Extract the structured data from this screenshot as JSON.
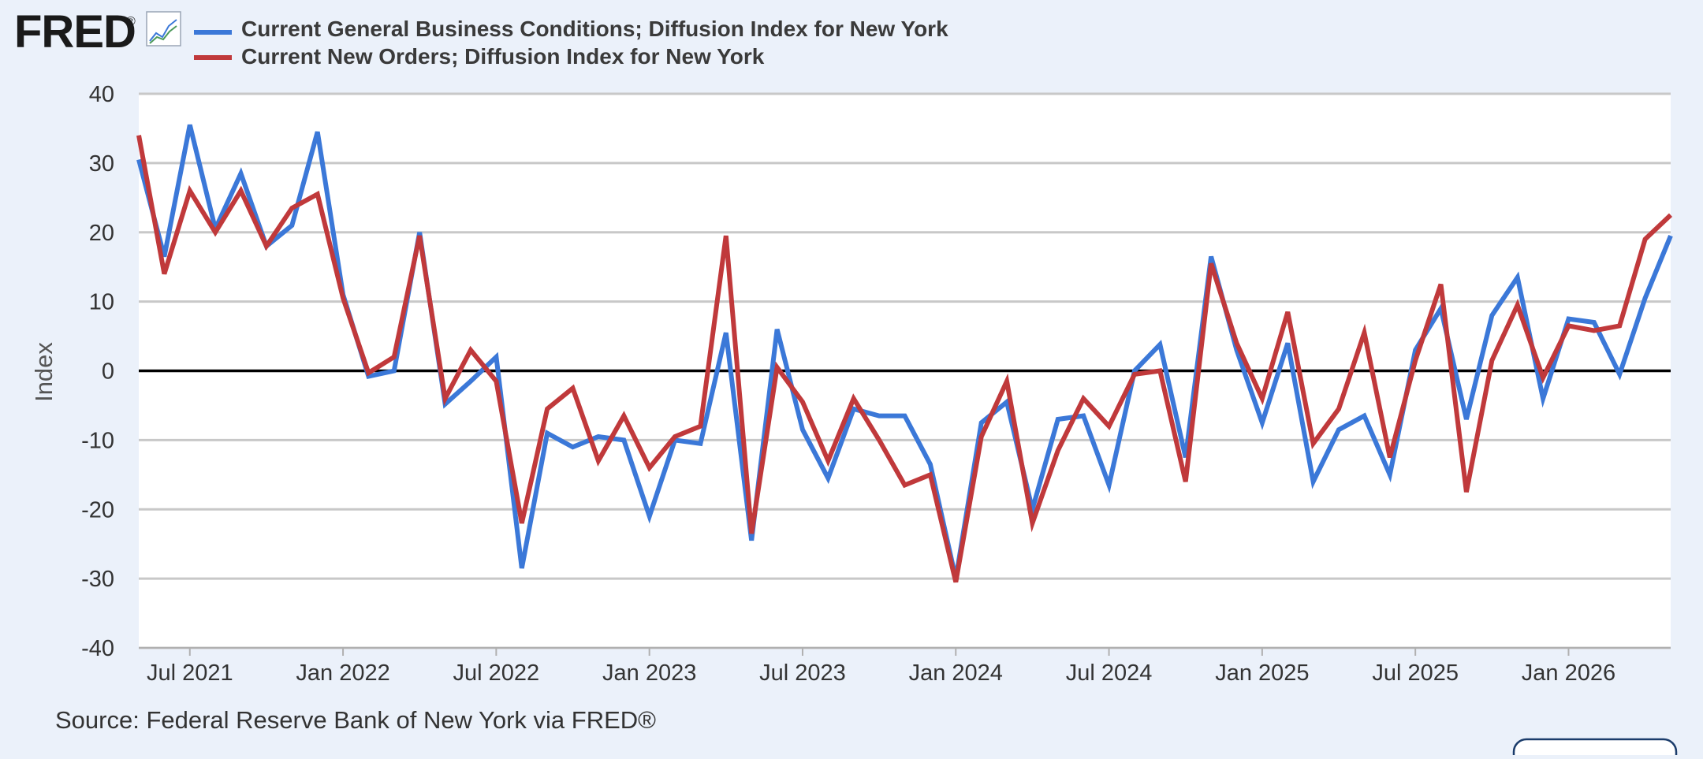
{
  "brand": {
    "logo_text": "FRED",
    "registered_mark": "®",
    "icon": "line-chart-icon"
  },
  "colors": {
    "background": "#ebf1fa",
    "plot_background": "#ffffff",
    "grid": "#c8c8c8",
    "zero_line": "#000000"
  },
  "source": "Source: Federal Reserve Bank of New York via FRED®",
  "chart_data": {
    "type": "line",
    "ylabel": "Index",
    "ylim": [
      -40,
      40
    ],
    "yticks": [
      "40",
      "30",
      "20",
      "10",
      "0",
      "-10",
      "-20",
      "-30",
      "-40"
    ],
    "grid": true,
    "legend_position": "top-left",
    "x": [
      "2021-05",
      "2021-06",
      "2021-07",
      "2021-08",
      "2021-09",
      "2021-10",
      "2021-11",
      "2021-12",
      "2022-01",
      "2022-02",
      "2022-03",
      "2022-04",
      "2022-05",
      "2022-06",
      "2022-07",
      "2022-08",
      "2022-09",
      "2022-10",
      "2022-11",
      "2022-12",
      "2023-01",
      "2023-02",
      "2023-03",
      "2023-04",
      "2023-05",
      "2023-06",
      "2023-07",
      "2023-08",
      "2023-09",
      "2023-10",
      "2023-11",
      "2023-12",
      "2024-01",
      "2024-02",
      "2024-03",
      "2024-04",
      "2024-05",
      "2024-06",
      "2024-07",
      "2024-08",
      "2024-09",
      "2024-10",
      "2024-11",
      "2024-12",
      "2025-01",
      "2025-02",
      "2025-03",
      "2025-04",
      "2025-05",
      "2025-06",
      "2025-07",
      "2025-08",
      "2025-09",
      "2025-10",
      "2025-11",
      "2025-12",
      "2026-01",
      "2026-02",
      "2026-03",
      "2026-04",
      "2026-05"
    ],
    "x_range": [
      "2021-05",
      "2026-05"
    ],
    "xticks": [
      {
        "label": "Jul 2021",
        "date": "2021-07"
      },
      {
        "label": "Jan 2022",
        "date": "2022-01"
      },
      {
        "label": "Jul 2022",
        "date": "2022-07"
      },
      {
        "label": "Jan 2023",
        "date": "2023-01"
      },
      {
        "label": "Jul 2023",
        "date": "2023-07"
      },
      {
        "label": "Jan 2024",
        "date": "2024-01"
      },
      {
        "label": "Jul 2024",
        "date": "2024-07"
      },
      {
        "label": "Jan 2025",
        "date": "2025-01"
      },
      {
        "label": "Jul 2025",
        "date": "2025-07"
      },
      {
        "label": "Jan 2026",
        "date": "2026-01"
      }
    ],
    "series": [
      {
        "name": "Current General Business Conditions; Diffusion Index for New York",
        "color": "#3b78d8",
        "values": [
          30.5,
          16.5,
          35.5,
          20.5,
          28.5,
          18.0,
          21.0,
          34.5,
          11.0,
          -0.8,
          0.0,
          20.0,
          -4.8,
          -1.5,
          2.0,
          -28.5,
          -9.0,
          -11.0,
          -9.5,
          -10.0,
          -21.0,
          -10.0,
          -10.5,
          5.5,
          -24.5,
          6.0,
          -8.5,
          -15.5,
          -5.5,
          -6.5,
          -6.5,
          -13.5,
          -30.0,
          -7.5,
          -4.5,
          -20.0,
          -7.0,
          -6.5,
          -16.5,
          0.0,
          3.8,
          -12.5,
          16.5,
          3.0,
          -7.5,
          4.0,
          -16.0,
          -8.5,
          -6.5,
          -15.0,
          3.0,
          9.0,
          -7.0,
          8.0,
          13.5,
          -4.0,
          7.5,
          7.0,
          -0.5,
          10.5,
          19.5
        ]
      },
      {
        "name": "Current New Orders; Diffusion Index for New York",
        "color": "#c0393b",
        "values": [
          34.0,
          14.0,
          26.0,
          20.0,
          26.0,
          18.0,
          23.5,
          25.5,
          10.5,
          -0.3,
          2.0,
          19.5,
          -4.0,
          3.0,
          -1.5,
          -22.0,
          -5.5,
          -2.5,
          -13.0,
          -6.5,
          -14.0,
          -9.5,
          -8.0,
          19.5,
          -23.5,
          0.5,
          -4.5,
          -13.0,
          -4.0,
          -10.0,
          -16.5,
          -15.0,
          -30.5,
          -9.5,
          -1.5,
          -22.0,
          -11.5,
          -4.0,
          -8.0,
          -0.5,
          0.0,
          -16.0,
          15.5,
          4.0,
          -4.0,
          8.5,
          -10.5,
          -5.5,
          5.5,
          -12.5,
          1.5,
          12.5,
          -17.5,
          1.5,
          9.5,
          -1.0,
          6.5,
          5.8,
          6.5,
          19.0,
          22.5
        ]
      }
    ]
  }
}
